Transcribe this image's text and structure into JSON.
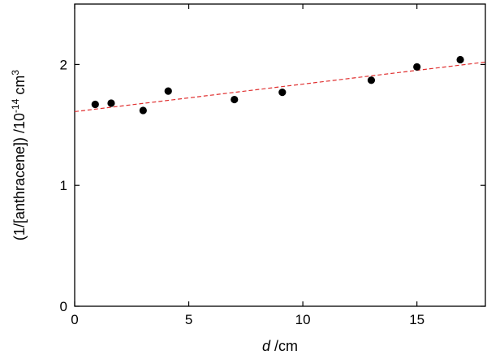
{
  "chart_data": {
    "type": "scatter",
    "xlabel_italic": "d",
    "xlabel_rest": " /cm",
    "ylabel_main": "(1/[anthracene]) /10",
    "ylabel_exp": "-14",
    "ylabel_unit": " cm",
    "ylabel_unit_exp": "3",
    "xlim": [
      0,
      18
    ],
    "ylim": [
      0,
      2.5
    ],
    "xticks": [
      0,
      5,
      10,
      15
    ],
    "yticks": [
      0,
      1,
      2
    ],
    "xtick_labels": [
      "0",
      "5",
      "10",
      "15"
    ],
    "ytick_labels": [
      "0",
      "1",
      "2"
    ],
    "grid": false,
    "series": [
      {
        "kind": "points",
        "color": "#000000",
        "x": [
          0.9,
          1.6,
          3.0,
          4.1,
          7.0,
          9.1,
          13.0,
          15.0,
          16.9
        ],
        "y": [
          1.67,
          1.68,
          1.62,
          1.78,
          1.71,
          1.77,
          1.87,
          1.98,
          2.04
        ]
      },
      {
        "kind": "fit-line",
        "color": "#e03030",
        "style": "dashed",
        "x": [
          0,
          18
        ],
        "y": [
          1.61,
          2.02
        ]
      }
    ]
  }
}
